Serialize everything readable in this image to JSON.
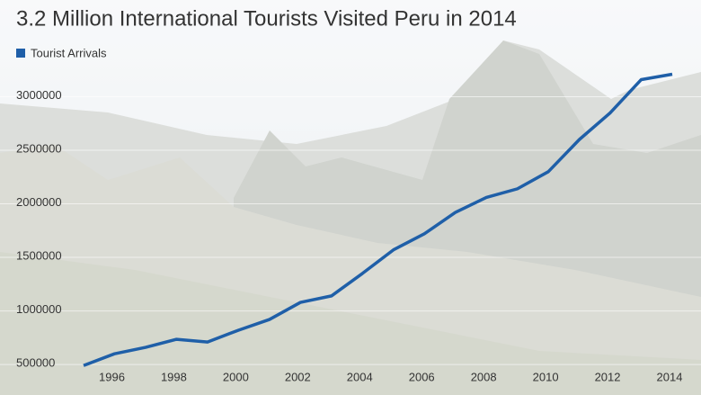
{
  "chart_data": {
    "type": "line",
    "title": "3.2 Million International Tourists Visited Peru in 2014",
    "x": [
      1995,
      1996,
      1997,
      1998,
      1999,
      2000,
      2001,
      2002,
      2003,
      2004,
      2005,
      2006,
      2007,
      2008,
      2009,
      2010,
      2011,
      2012,
      2013,
      2014
    ],
    "series": [
      {
        "name": "Tourist Arrivals",
        "color": "#1f5fa8",
        "values": [
          490000,
          600000,
          660000,
          735000,
          710000,
          820000,
          920000,
          1080000,
          1140000,
          1350000,
          1570000,
          1720000,
          1920000,
          2060000,
          2140000,
          2300000,
          2600000,
          2850000,
          3160000,
          3210000
        ]
      }
    ],
    "xlim": [
      1995,
      2014
    ],
    "xticks": [
      1996,
      1998,
      2000,
      2002,
      2004,
      2006,
      2008,
      2010,
      2012,
      2014
    ],
    "ylim": [
      215000,
      3500000
    ],
    "yticks": [
      500000,
      1000000,
      1500000,
      2000000,
      2500000,
      3000000
    ],
    "grid": true,
    "legend": "top-left"
  }
}
